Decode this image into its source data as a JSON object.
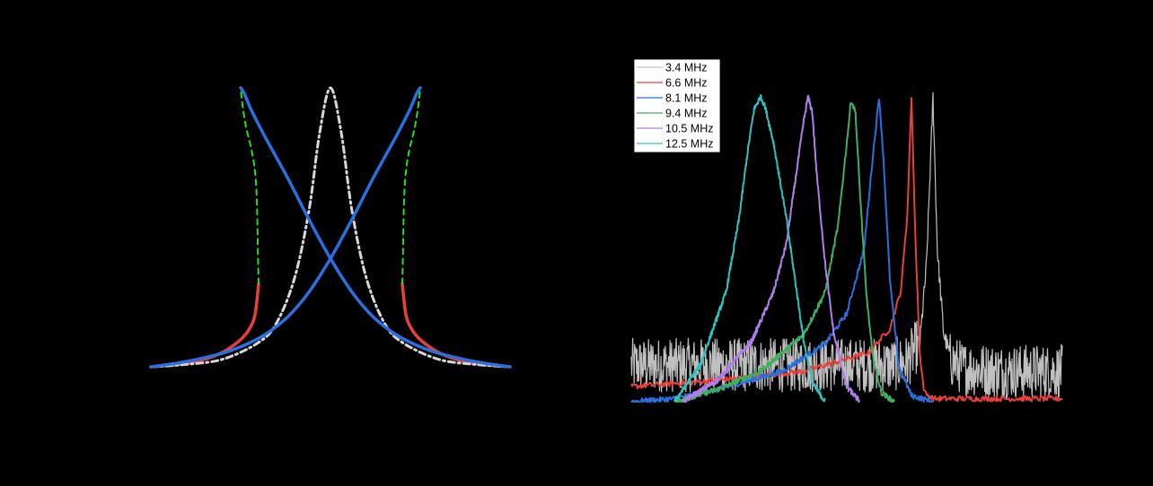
{
  "colors": {
    "background": "#000000",
    "gray": "#c0c0c0",
    "red": "#e8403a",
    "blue": "#2a6fe0",
    "green": "#40b060",
    "purple": "#b07ee8",
    "cyan": "#30c0c0",
    "dash_green": "#22dd22",
    "dot_gray": "#d8d8d8"
  },
  "chart_data": [
    {
      "type": "line",
      "title": "",
      "xlabel": "",
      "ylabel": "",
      "xlim": [
        -1,
        1
      ],
      "ylim": [
        0,
        1
      ],
      "grid": false,
      "series": [
        {
          "role": "left-branch",
          "x": [
            -1.0,
            -0.9,
            -0.8,
            -0.7,
            -0.6,
            -0.5,
            -0.45,
            -0.42,
            -0.4
          ],
          "y": [
            0.003,
            0.008,
            0.016,
            0.03,
            0.055,
            0.1,
            0.14,
            0.19,
            0.3
          ],
          "color": "red",
          "style": "solid"
        },
        {
          "role": "left-unstable",
          "x": [
            -0.4,
            -0.405,
            -0.41,
            -0.42,
            -0.44,
            -0.47,
            -0.49,
            -0.5
          ],
          "y": [
            0.3,
            0.45,
            0.6,
            0.7,
            0.78,
            0.86,
            0.94,
            1.0
          ],
          "color": "dash_green",
          "style": "dashed"
        },
        {
          "role": "right-branch",
          "x": [
            0.4,
            0.42,
            0.45,
            0.5,
            0.6,
            0.7,
            0.8,
            0.9,
            1.0
          ],
          "y": [
            0.3,
            0.19,
            0.14,
            0.1,
            0.055,
            0.03,
            0.016,
            0.008,
            0.003
          ],
          "color": "red",
          "style": "solid"
        },
        {
          "role": "right-unstable",
          "x": [
            0.4,
            0.405,
            0.41,
            0.42,
            0.44,
            0.47,
            0.49,
            0.5
          ],
          "y": [
            0.3,
            0.45,
            0.6,
            0.7,
            0.78,
            0.86,
            0.94,
            1.0
          ],
          "color": "dash_green",
          "style": "dashed"
        },
        {
          "role": "linear-response",
          "x": [
            -1.0,
            -0.8,
            -0.6,
            -0.4,
            -0.3,
            -0.2,
            -0.12,
            -0.06,
            0.0,
            0.06,
            0.12,
            0.2,
            0.3,
            0.4,
            0.6,
            0.8,
            1.0
          ],
          "y": [
            0.003,
            0.012,
            0.03,
            0.09,
            0.16,
            0.32,
            0.56,
            0.84,
            1.0,
            0.84,
            0.56,
            0.32,
            0.16,
            0.09,
            0.03,
            0.012,
            0.003
          ],
          "color": "dot_gray",
          "style": "dashdot"
        },
        {
          "role": "blue-left-peak",
          "x": [
            -0.5,
            -0.48,
            -0.44,
            -0.36,
            -0.24,
            -0.12,
            0.0,
            0.12,
            0.24,
            0.36,
            0.48,
            0.6,
            0.8,
            1.0
          ],
          "y": [
            1.0,
            0.98,
            0.92,
            0.82,
            0.68,
            0.53,
            0.39,
            0.27,
            0.18,
            0.12,
            0.08,
            0.052,
            0.022,
            0.003
          ],
          "color": "blue",
          "style": "solid"
        },
        {
          "role": "blue-right-peak",
          "x": [
            -1.0,
            -0.8,
            -0.6,
            -0.48,
            -0.36,
            -0.24,
            -0.12,
            0.0,
            0.12,
            0.24,
            0.36,
            0.44,
            0.48,
            0.5
          ],
          "y": [
            0.003,
            0.022,
            0.052,
            0.08,
            0.12,
            0.18,
            0.27,
            0.39,
            0.53,
            0.68,
            0.82,
            0.92,
            0.98,
            1.0
          ],
          "color": "blue",
          "style": "solid"
        }
      ]
    },
    {
      "type": "line",
      "title": "",
      "xlabel": "",
      "ylabel": "",
      "xlim": [
        0,
        1
      ],
      "ylim": [
        0,
        1
      ],
      "grid": false,
      "legend": {
        "placement": "top-left",
        "entries": [
          {
            "label": "3.4 MHz",
            "color": "gray"
          },
          {
            "label": "6.6 MHz",
            "color": "red"
          },
          {
            "label": "8.1 MHz",
            "color": "blue"
          },
          {
            "label": "9.4 MHz",
            "color": "green"
          },
          {
            "label": "10.5 MHz",
            "color": "purple"
          },
          {
            "label": "12.5 MHz",
            "color": "cyan"
          }
        ]
      },
      "series": [
        {
          "name": "3.4 MHz",
          "color": "gray",
          "noisy": true,
          "x": [
            0.0,
            0.2,
            0.4,
            0.6,
            0.64,
            0.67,
            0.685,
            0.7,
            0.71,
            0.725,
            0.745,
            0.77,
            0.85,
            1.0
          ],
          "y": [
            0.12,
            0.12,
            0.12,
            0.12,
            0.13,
            0.2,
            0.45,
            1.0,
            0.5,
            0.22,
            0.13,
            0.11,
            0.1,
            0.1
          ]
        },
        {
          "name": "6.6 MHz",
          "color": "red",
          "noisy": false,
          "x": [
            0.0,
            0.2,
            0.4,
            0.55,
            0.6,
            0.625,
            0.64,
            0.65,
            0.66,
            0.67,
            0.68,
            0.7,
            0.75,
            1.0
          ],
          "y": [
            0.05,
            0.07,
            0.1,
            0.16,
            0.24,
            0.36,
            0.6,
            1.0,
            0.5,
            0.14,
            0.03,
            0.01,
            0.01,
            0.01
          ]
        },
        {
          "name": "8.1 MHz",
          "color": "blue",
          "noisy": false,
          "x": [
            0.0,
            0.1,
            0.2,
            0.35,
            0.45,
            0.5,
            0.54,
            0.56,
            0.575,
            0.585,
            0.6,
            0.62,
            0.65,
            0.7
          ],
          "y": [
            0.0,
            0.01,
            0.04,
            0.1,
            0.19,
            0.29,
            0.5,
            0.8,
            1.0,
            0.8,
            0.4,
            0.12,
            0.02,
            0.0
          ]
        },
        {
          "name": "9.4 MHz",
          "color": "green",
          "noisy": false,
          "x": [
            0.1,
            0.2,
            0.3,
            0.4,
            0.45,
            0.48,
            0.5,
            0.51,
            0.52,
            0.53,
            0.545,
            0.56,
            0.58,
            0.61
          ],
          "y": [
            0.0,
            0.04,
            0.1,
            0.22,
            0.36,
            0.58,
            0.85,
            0.99,
            0.95,
            0.7,
            0.36,
            0.15,
            0.03,
            0.0
          ]
        },
        {
          "name": "10.5 MHz",
          "color": "purple",
          "noisy": false,
          "x": [
            0.12,
            0.2,
            0.28,
            0.33,
            0.36,
            0.38,
            0.4,
            0.41,
            0.42,
            0.43,
            0.45,
            0.47,
            0.5,
            0.53
          ],
          "y": [
            0.0,
            0.07,
            0.2,
            0.36,
            0.52,
            0.72,
            0.92,
            1.0,
            0.95,
            0.75,
            0.45,
            0.22,
            0.05,
            0.0
          ]
        },
        {
          "name": "12.5 MHz",
          "color": "cyan",
          "noisy": false,
          "x": [
            0.1,
            0.16,
            0.22,
            0.25,
            0.27,
            0.285,
            0.3,
            0.31,
            0.33,
            0.36,
            0.38,
            0.4,
            0.42,
            0.45
          ],
          "y": [
            0.0,
            0.12,
            0.36,
            0.6,
            0.82,
            0.96,
            1.0,
            0.97,
            0.85,
            0.6,
            0.4,
            0.2,
            0.06,
            0.0
          ]
        }
      ]
    }
  ]
}
